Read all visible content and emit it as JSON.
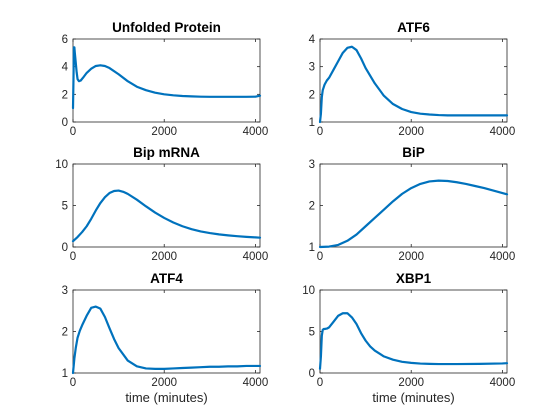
{
  "figure": {
    "background": "#ffffff",
    "line_color": "#0072BD"
  },
  "chart_data": [
    {
      "type": "line",
      "title": "Unfolded Protein",
      "xlabel": "",
      "ylabel": "",
      "xlim": [
        0,
        4100
      ],
      "ylim": [
        0,
        6
      ],
      "xticks": [
        0,
        2000,
        4000
      ],
      "yticks": [
        0,
        2,
        4,
        6
      ],
      "grid": false,
      "series": [
        {
          "x": [
            0,
            10,
            20,
            30,
            40,
            60,
            80,
            100,
            130,
            170,
            220,
            300,
            400,
            500,
            600,
            700,
            800,
            1000,
            1200,
            1400,
            1600,
            1800,
            2000,
            2200,
            2400,
            2600,
            2800,
            3000,
            3200,
            3400,
            3600,
            3800,
            4000,
            4100
          ],
          "y": [
            1.0,
            3.0,
            5.4,
            5.4,
            5.0,
            4.3,
            3.6,
            3.1,
            2.95,
            3.0,
            3.2,
            3.55,
            3.85,
            4.05,
            4.1,
            4.05,
            3.9,
            3.45,
            2.95,
            2.55,
            2.3,
            2.12,
            2.0,
            1.93,
            1.88,
            1.85,
            1.83,
            1.82,
            1.82,
            1.82,
            1.82,
            1.82,
            1.83,
            1.9
          ]
        }
      ]
    },
    {
      "type": "line",
      "title": "ATF6",
      "xlabel": "",
      "ylabel": "",
      "xlim": [
        0,
        4100
      ],
      "ylim": [
        1,
        4
      ],
      "xticks": [
        0,
        2000,
        4000
      ],
      "yticks": [
        1,
        2,
        3,
        4
      ],
      "grid": false,
      "series": [
        {
          "x": [
            0,
            20,
            40,
            60,
            80,
            100,
            150,
            200,
            300,
            400,
            500,
            600,
            700,
            800,
            900,
            1000,
            1200,
            1400,
            1600,
            1800,
            2000,
            2200,
            2400,
            2600,
            2800,
            3000,
            3500,
            4000,
            4100
          ],
          "y": [
            1.0,
            1.3,
            1.9,
            2.15,
            2.25,
            2.35,
            2.5,
            2.6,
            2.9,
            3.2,
            3.5,
            3.68,
            3.72,
            3.6,
            3.3,
            2.95,
            2.4,
            1.95,
            1.65,
            1.47,
            1.36,
            1.3,
            1.27,
            1.25,
            1.24,
            1.24,
            1.24,
            1.24,
            1.24
          ]
        }
      ]
    },
    {
      "type": "line",
      "title": "Bip mRNA",
      "xlabel": "",
      "ylabel": "",
      "xlim": [
        0,
        4100
      ],
      "ylim": [
        0,
        10
      ],
      "xticks": [
        0,
        2000,
        4000
      ],
      "yticks": [
        0,
        5,
        10
      ],
      "grid": false,
      "series": [
        {
          "x": [
            0,
            100,
            200,
            300,
            400,
            500,
            600,
            700,
            800,
            900,
            1000,
            1100,
            1200,
            1400,
            1600,
            1800,
            2000,
            2200,
            2400,
            2600,
            2800,
            3000,
            3200,
            3400,
            3600,
            3800,
            4000,
            4100
          ],
          "y": [
            0.7,
            1.2,
            1.8,
            2.5,
            3.4,
            4.4,
            5.3,
            6.0,
            6.5,
            6.75,
            6.8,
            6.65,
            6.4,
            5.7,
            4.9,
            4.15,
            3.5,
            2.95,
            2.5,
            2.15,
            1.88,
            1.68,
            1.52,
            1.4,
            1.3,
            1.22,
            1.16,
            1.12
          ]
        }
      ]
    },
    {
      "type": "line",
      "title": "BiP",
      "xlabel": "",
      "ylabel": "",
      "xlim": [
        0,
        4100
      ],
      "ylim": [
        1,
        3
      ],
      "xticks": [
        0,
        2000,
        4000
      ],
      "yticks": [
        1,
        2,
        3
      ],
      "grid": false,
      "series": [
        {
          "x": [
            0,
            200,
            400,
            600,
            800,
            1000,
            1200,
            1400,
            1600,
            1800,
            2000,
            2200,
            2400,
            2600,
            2800,
            3000,
            3200,
            3400,
            3600,
            3800,
            4000,
            4100
          ],
          "y": [
            1.0,
            1.01,
            1.05,
            1.15,
            1.3,
            1.5,
            1.7,
            1.9,
            2.1,
            2.28,
            2.42,
            2.52,
            2.58,
            2.6,
            2.59,
            2.56,
            2.52,
            2.47,
            2.42,
            2.36,
            2.3,
            2.27
          ]
        }
      ]
    },
    {
      "type": "line",
      "title": "ATF4",
      "xlabel": "time (minutes)",
      "ylabel": "",
      "xlim": [
        0,
        4100
      ],
      "ylim": [
        1,
        3
      ],
      "xticks": [
        0,
        2000,
        4000
      ],
      "yticks": [
        1,
        2,
        3
      ],
      "grid": false,
      "series": [
        {
          "x": [
            0,
            30,
            60,
            100,
            150,
            200,
            300,
            400,
            500,
            600,
            700,
            800,
            900,
            1000,
            1200,
            1400,
            1600,
            1800,
            2000,
            2200,
            2400,
            2600,
            2800,
            3000,
            3200,
            3400,
            3600,
            3800,
            4000,
            4100
          ],
          "y": [
            1.0,
            1.35,
            1.6,
            1.85,
            2.02,
            2.15,
            2.38,
            2.57,
            2.6,
            2.55,
            2.35,
            2.08,
            1.82,
            1.6,
            1.3,
            1.16,
            1.11,
            1.1,
            1.1,
            1.11,
            1.12,
            1.13,
            1.14,
            1.15,
            1.15,
            1.16,
            1.16,
            1.17,
            1.17,
            1.17
          ]
        }
      ]
    },
    {
      "type": "line",
      "title": "XBP1",
      "xlabel": "time (minutes)",
      "ylabel": "",
      "xlim": [
        0,
        4100
      ],
      "ylim": [
        0,
        10
      ],
      "xticks": [
        0,
        2000,
        4000
      ],
      "yticks": [
        0,
        5,
        10
      ],
      "grid": false,
      "series": [
        {
          "x": [
            0,
            20,
            40,
            60,
            80,
            100,
            150,
            200,
            300,
            400,
            500,
            600,
            700,
            800,
            900,
            1000,
            1100,
            1200,
            1400,
            1600,
            1800,
            2000,
            2200,
            2400,
            2600,
            2800,
            3000,
            3500,
            4000,
            4100
          ],
          "y": [
            0.5,
            2.0,
            4.5,
            5.2,
            5.3,
            5.3,
            5.35,
            5.5,
            6.2,
            6.9,
            7.2,
            7.2,
            6.7,
            5.9,
            4.8,
            3.9,
            3.2,
            2.7,
            2.0,
            1.6,
            1.35,
            1.22,
            1.14,
            1.1,
            1.08,
            1.08,
            1.08,
            1.1,
            1.15,
            1.18
          ]
        }
      ]
    }
  ]
}
